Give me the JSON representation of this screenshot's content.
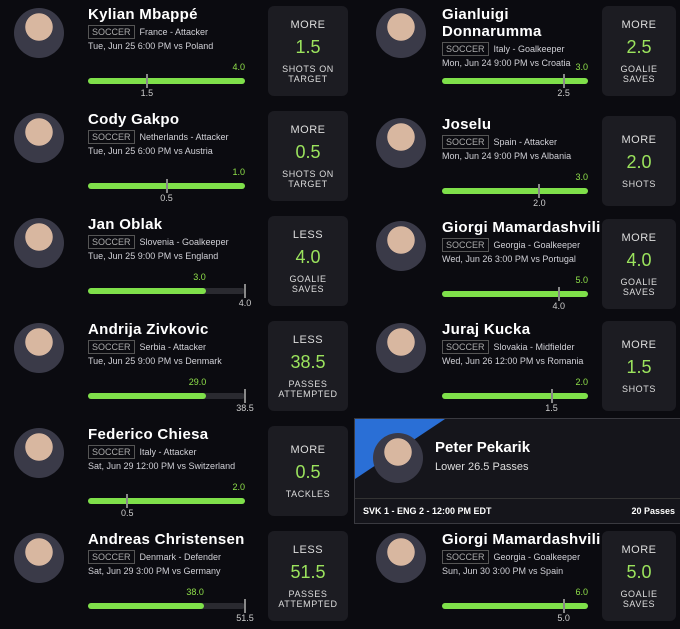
{
  "cards": [
    {
      "name": "Kylian Mbappé",
      "league": "SOCCER",
      "info": "France - Attacker",
      "game": "Tue, Jun 25 6:00 PM  vs Poland",
      "actual": "4.0",
      "line": "1.5",
      "pick": "MORE",
      "stat": "SHOTS ON TARGET"
    },
    {
      "name": "Cody Gakpo",
      "league": "SOCCER",
      "info": "Netherlands - Attacker",
      "game": "Tue, Jun 25 6:00 PM  vs Austria",
      "actual": "1.0",
      "line": "0.5",
      "pick": "MORE",
      "stat": "SHOTS ON TARGET"
    },
    {
      "name": "Jan Oblak",
      "league": "SOCCER",
      "info": "Slovenia - Goalkeeper",
      "game": "Tue, Jun 25 9:00 PM  vs England",
      "actual": "3.0",
      "line": "4.0",
      "pick": "LESS",
      "stat": "GOALIE SAVES"
    },
    {
      "name": "Andrija Zivkovic",
      "league": "SOCCER",
      "info": "Serbia - Attacker",
      "game": "Tue, Jun 25 9:00 PM  vs Denmark",
      "actual": "29.0",
      "line": "38.5",
      "pick": "LESS",
      "stat": "PASSES ATTEMPTED"
    },
    {
      "name": "Federico Chiesa",
      "league": "SOCCER",
      "info": "Italy - Attacker",
      "game": "Sat, Jun 29 12:00 PM  vs Switzerland",
      "actual": "2.0",
      "line": "0.5",
      "pick": "MORE",
      "stat": "TACKLES"
    },
    {
      "name": "Andreas Christensen",
      "league": "SOCCER",
      "info": "Denmark - Defender",
      "game": "Sat, Jun 29 3:00 PM  vs Germany",
      "actual": "38.0",
      "line": "51.5",
      "pick": "LESS",
      "stat": "PASSES ATTEMPTED"
    },
    {
      "name": "Gianluigi Donnarumma",
      "league": "SOCCER",
      "info": "Italy - Goalkeeper",
      "game": "Mon, Jun 24 9:00 PM  vs Croatia",
      "actual": "3.0",
      "line": "2.5",
      "pick": "MORE",
      "stat": "GOALIE SAVES"
    },
    {
      "name": "Joselu",
      "league": "SOCCER",
      "info": "Spain - Attacker",
      "game": "Mon, Jun 24 9:00 PM  vs Albania",
      "actual": "3.0",
      "line": "2.0",
      "pick": "MORE",
      "stat": "SHOTS"
    },
    {
      "name": "Giorgi Mamardashvili",
      "league": "SOCCER",
      "info": "Georgia - Goalkeeper",
      "game": "Wed, Jun 26 3:00 PM  vs Portugal",
      "actual": "5.0",
      "line": "4.0",
      "pick": "MORE",
      "stat": "GOALIE SAVES"
    },
    {
      "name": "Juraj Kucka",
      "league": "SOCCER",
      "info": "Slovakia - Midfielder",
      "game": "Wed, Jun 26 12:00 PM  vs Romania",
      "actual": "2.0",
      "line": "1.5",
      "pick": "MORE",
      "stat": "SHOTS"
    },
    {
      "name": "Giorgi Mamardashvili",
      "league": "SOCCER",
      "info": "Georgia - Goalkeeper",
      "game": "Sun, Jun 30 3:00 PM  vs Spain",
      "actual": "6.0",
      "line": "5.0",
      "pick": "MORE",
      "stat": "GOALIE SAVES"
    }
  ],
  "highlight": {
    "name": "Peter Pekarik",
    "description": "Lower 26.5 Passes",
    "score": "SVK 1 - ENG 2 - 12:00 PM EDT",
    "result": "20 Passes"
  }
}
